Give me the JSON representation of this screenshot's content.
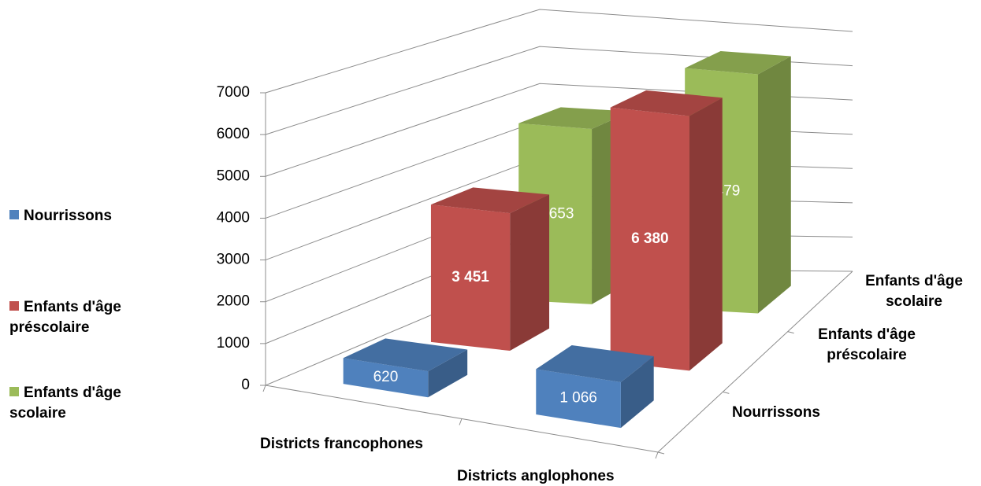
{
  "chart_data": {
    "type": "bar3d",
    "categories": [
      "Districts francophones",
      "Districts anglophones"
    ],
    "series": [
      {
        "name": "Nourrissons",
        "color": "#4f81bd",
        "values": [
          620,
          1066
        ],
        "value_labels": [
          "620",
          "1 066"
        ]
      },
      {
        "name": "Enfants d'âge préscolaire",
        "color": "#c0504d",
        "values": [
          3451,
          6380
        ],
        "value_labels": [
          "3 451",
          "6 380"
        ]
      },
      {
        "name": "Enfants d'âge scolaire",
        "color": "#9bbb59",
        "values": [
          4653,
          6479
        ],
        "value_labels": [
          "4 653",
          "6 479"
        ]
      }
    ],
    "ylim": [
      0,
      7000
    ],
    "yticks": [
      0,
      1000,
      2000,
      3000,
      4000,
      5000,
      6000,
      7000
    ],
    "grid": true,
    "legend": "left"
  }
}
